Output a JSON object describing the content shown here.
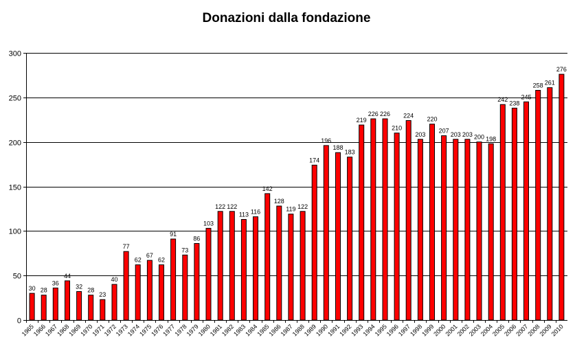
{
  "chart_data": {
    "type": "bar",
    "title": "Donazioni dalla fondazione",
    "xlabel": "",
    "ylabel": "",
    "ylim": [
      0,
      300
    ],
    "yticks": [
      0,
      50,
      100,
      150,
      200,
      250,
      300
    ],
    "grid": true,
    "legend": "none",
    "bar_color": "#ff0000",
    "categories": [
      "1965",
      "1966",
      "1967",
      "1968",
      "1969",
      "1970",
      "1971",
      "1972",
      "1973",
      "1974",
      "1975",
      "1976",
      "1977",
      "1978",
      "1979",
      "1980",
      "1981",
      "1982",
      "1983",
      "1984",
      "1985",
      "1986",
      "1987",
      "1988",
      "1989",
      "1990",
      "1991",
      "1992",
      "1993",
      "1994",
      "1995",
      "1996",
      "1997",
      "1998",
      "1999",
      "2000",
      "2001",
      "2002",
      "2003",
      "2004",
      "2005",
      "2006",
      "2007",
      "2008",
      "2009",
      "2010"
    ],
    "values": [
      30,
      28,
      36,
      44,
      32,
      28,
      23,
      40,
      77,
      62,
      67,
      62,
      91,
      73,
      86,
      103,
      122,
      122,
      113,
      116,
      142,
      128,
      119,
      122,
      174,
      196,
      188,
      183,
      219,
      226,
      226,
      210,
      224,
      203,
      220,
      207,
      203,
      203,
      200,
      198,
      242,
      238,
      245,
      258,
      261,
      276
    ]
  }
}
